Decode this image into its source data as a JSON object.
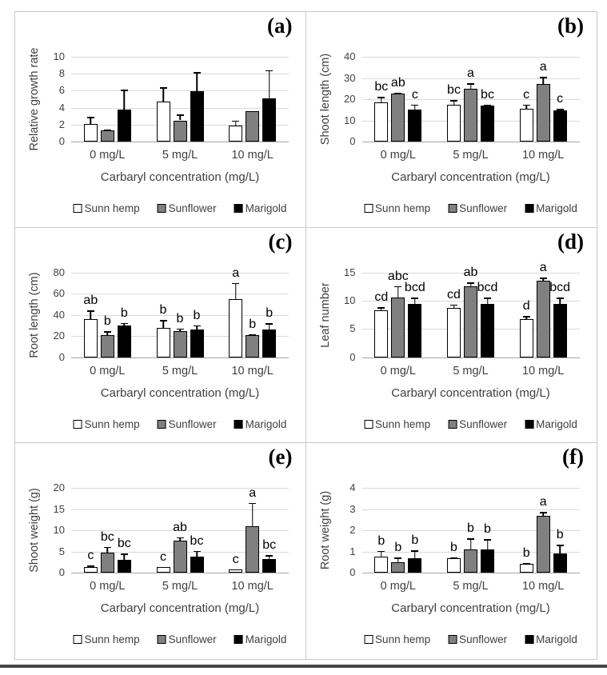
{
  "figure": {
    "legend_labels": [
      "Sunn hemp",
      "Sunflower",
      "Marigold"
    ],
    "series_colors": {
      "Sunn hemp": "#ffffff",
      "Sunflower": "#808080",
      "Marigold": "#000000"
    },
    "text_color": "#3f3f3f",
    "gridline_color": "#d9d9d9",
    "xlabel": "Carbaryl concentration (mg/L)",
    "categories": [
      "0 mg/L",
      "5 mg/L",
      "10 mg/L"
    ]
  },
  "chart_data": [
    {
      "type": "bar",
      "panel": "(a)",
      "ylabel": "Relative growth rate",
      "xlabel": "Carbaryl concentration (mg/L)",
      "categories": [
        "0 mg/L",
        "5 mg/L",
        "10 mg/L"
      ],
      "ylim": [
        0,
        10
      ],
      "yticks": [
        0,
        2,
        4,
        6,
        8,
        10
      ],
      "grid": true,
      "legend_position": "bottom",
      "series": [
        {
          "name": "Sunn hemp",
          "values": [
            2.1,
            4.7,
            1.9
          ],
          "errors": [
            0.8,
            1.7,
            0.6
          ],
          "letters": [
            "",
            "",
            ""
          ]
        },
        {
          "name": "Sunflower",
          "values": [
            1.35,
            2.5,
            3.55
          ],
          "errors": [
            0.1,
            0.7,
            0.05
          ],
          "letters": [
            "",
            "",
            ""
          ]
        },
        {
          "name": "Marigold",
          "values": [
            3.8,
            5.9,
            5.1
          ],
          "errors": [
            2.3,
            2.3,
            3.3
          ],
          "letters": [
            "",
            "",
            ""
          ]
        }
      ]
    },
    {
      "type": "bar",
      "panel": "(b)",
      "ylabel": "Shoot length (cm)",
      "xlabel": "Carbaryl concentration (mg/L)",
      "categories": [
        "0 mg/L",
        "5 mg/L",
        "10 mg/L"
      ],
      "ylim": [
        0,
        40
      ],
      "yticks": [
        0,
        10,
        20,
        30,
        40
      ],
      "grid": true,
      "legend_position": "bottom",
      "series": [
        {
          "name": "Sunn hemp",
          "values": [
            18.5,
            17.5,
            15.5
          ],
          "errors": [
            2.5,
            2.0,
            2.0
          ],
          "letters": [
            "bc",
            "bc",
            "c"
          ]
        },
        {
          "name": "Sunflower",
          "values": [
            22.5,
            25.0,
            27.0
          ],
          "errors": [
            0.5,
            2.5,
            3.5
          ],
          "letters": [
            "ab",
            "a",
            "a"
          ]
        },
        {
          "name": "Marigold",
          "values": [
            15.0,
            16.8,
            14.7
          ],
          "errors": [
            2.5,
            0.4,
            0.6
          ],
          "letters": [
            "c",
            "bc",
            "c"
          ]
        }
      ]
    },
    {
      "type": "bar",
      "panel": "(c)",
      "ylabel": "Root length (cm)",
      "xlabel": "Carbaryl concentration (mg/L)",
      "categories": [
        "0 mg/L",
        "5 mg/L",
        "10 mg/L"
      ],
      "ylim": [
        0,
        80
      ],
      "yticks": [
        0,
        20,
        40,
        60,
        80
      ],
      "grid": true,
      "legend_position": "bottom",
      "series": [
        {
          "name": "Sunn hemp",
          "values": [
            36,
            28,
            55
          ],
          "errors": [
            8,
            7,
            15
          ],
          "letters": [
            "ab",
            "b",
            "a"
          ]
        },
        {
          "name": "Sunflower",
          "values": [
            21,
            25,
            21
          ],
          "errors": [
            3.5,
            2,
            1
          ],
          "letters": [
            "b",
            "b",
            "b"
          ]
        },
        {
          "name": "Marigold",
          "values": [
            30,
            26,
            26
          ],
          "errors": [
            2.5,
            4,
            6
          ],
          "letters": [
            "b",
            "b",
            "b"
          ]
        }
      ]
    },
    {
      "type": "bar",
      "panel": "(d)",
      "ylabel": "Leaf number",
      "xlabel": "Carbaryl concentration (mg/L)",
      "categories": [
        "0 mg/L",
        "5 mg/L",
        "10 mg/L"
      ],
      "ylim": [
        0,
        15
      ],
      "yticks": [
        0,
        5,
        10,
        15
      ],
      "grid": true,
      "legend_position": "bottom",
      "series": [
        {
          "name": "Sunn hemp",
          "values": [
            8.3,
            8.7,
            6.7
          ],
          "errors": [
            0.5,
            0.6,
            0.6
          ],
          "letters": [
            "cd",
            "cd",
            "d"
          ]
        },
        {
          "name": "Sunflower",
          "values": [
            10.5,
            12.5,
            13.5
          ],
          "errors": [
            2.1,
            0.7,
            0.6
          ],
          "letters": [
            "abc",
            "ab",
            "a"
          ]
        },
        {
          "name": "Marigold",
          "values": [
            9.4,
            9.4,
            9.4
          ],
          "errors": [
            1.1,
            1.1,
            1.1
          ],
          "letters": [
            "bcd",
            "bcd",
            "bcd"
          ]
        }
      ]
    },
    {
      "type": "bar",
      "panel": "(e)",
      "ylabel": "Shoot weight (g)",
      "xlabel": "Carbaryl concentration (mg/L)",
      "categories": [
        "0 mg/L",
        "5 mg/L",
        "10 mg/L"
      ],
      "ylim": [
        0,
        20
      ],
      "yticks": [
        0,
        5,
        10,
        15,
        20
      ],
      "grid": true,
      "legend_position": "bottom",
      "series": [
        {
          "name": "Sunn hemp",
          "values": [
            1.4,
            1.4,
            0.9
          ],
          "errors": [
            0.3,
            0,
            0
          ],
          "letters": [
            "c",
            "c",
            "c"
          ]
        },
        {
          "name": "Sunflower",
          "values": [
            4.7,
            7.7,
            11.0
          ],
          "errors": [
            1.4,
            0.7,
            5.5
          ],
          "letters": [
            "bc",
            "ab",
            "a"
          ]
        },
        {
          "name": "Marigold",
          "values": [
            3.1,
            3.9,
            3.3
          ],
          "errors": [
            1.4,
            1.3,
            0.9
          ],
          "letters": [
            "bc",
            "bc",
            "bc"
          ]
        }
      ]
    },
    {
      "type": "bar",
      "panel": "(f)",
      "ylabel": "Root weight (g)",
      "xlabel": "Carbaryl concentration (mg/L)",
      "categories": [
        "0 mg/L",
        "5 mg/L",
        "10 mg/L"
      ],
      "ylim": [
        0,
        4
      ],
      "yticks": [
        0,
        1,
        2,
        3,
        4
      ],
      "grid": true,
      "legend_position": "bottom",
      "series": [
        {
          "name": "Sunn hemp",
          "values": [
            0.75,
            0.7,
            0.42
          ],
          "errors": [
            0.3,
            0.04,
            0.06
          ],
          "letters": [
            "b",
            "b",
            "b"
          ]
        },
        {
          "name": "Sunflower",
          "values": [
            0.5,
            1.12,
            2.7
          ],
          "errors": [
            0.22,
            0.5,
            0.18
          ],
          "letters": [
            "b",
            "b",
            "a"
          ]
        },
        {
          "name": "Marigold",
          "values": [
            0.68,
            1.1,
            0.9
          ],
          "errors": [
            0.38,
            0.48,
            0.43
          ],
          "letters": [
            "b",
            "b",
            "b"
          ]
        }
      ]
    }
  ]
}
